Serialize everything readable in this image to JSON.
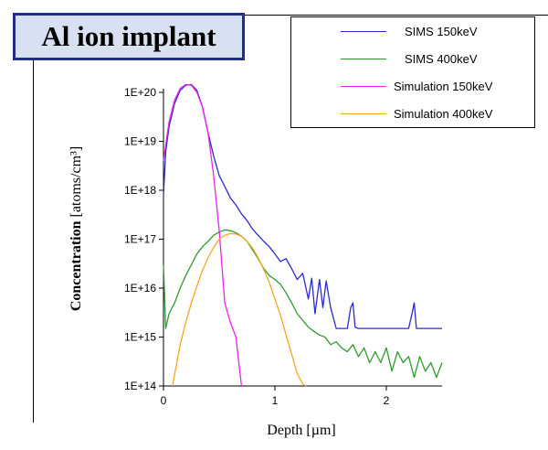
{
  "chart_data": {
    "type": "line",
    "title": "Al ion implant",
    "xlabel": "Depth [µm]",
    "ylabel_bold": "Concentration",
    "ylabel_unit": "[atoms/cm³]",
    "y_scale": "log",
    "xlim": [
      0,
      2.5
    ],
    "ylim": [
      100000000000000.0,
      1e+20
    ],
    "x_ticks": [
      {
        "value": 0,
        "label": "0"
      },
      {
        "value": 1,
        "label": "1"
      },
      {
        "value": 2,
        "label": "2"
      }
    ],
    "y_ticks": [
      {
        "value": 1e+20,
        "label": "1E+20"
      },
      {
        "value": 1e+19,
        "label": "1E+19"
      },
      {
        "value": 1e+18,
        "label": "1E+18"
      },
      {
        "value": 1e+17,
        "label": "1E+17"
      },
      {
        "value": 1e+16,
        "label": "1E+16"
      },
      {
        "value": 1000000000000000.0,
        "label": "1E+15"
      },
      {
        "value": 100000000000000.0,
        "label": "1E+14"
      }
    ],
    "grid": false,
    "legend_position": "top-right",
    "series": [
      {
        "name": "SIMS 150keV",
        "color": "#2b2bcc",
        "x": [
          0.0,
          0.02,
          0.05,
          0.1,
          0.15,
          0.2,
          0.25,
          0.3,
          0.35,
          0.4,
          0.45,
          0.5,
          0.55,
          0.6,
          0.65,
          0.7,
          0.75,
          0.8,
          0.85,
          0.9,
          0.95,
          1.0,
          1.05,
          1.1,
          1.15,
          1.2,
          1.25,
          1.3,
          1.33,
          1.36,
          1.4,
          1.43,
          1.46,
          1.5,
          1.55,
          1.6,
          1.65,
          1.68,
          1.7,
          1.72,
          1.75,
          1.8,
          1.9,
          2.0,
          2.1,
          2.2,
          2.23,
          2.25,
          2.27,
          2.3,
          2.4,
          2.5
        ],
        "y": [
          8e+17,
          6e+18,
          2e+19,
          6e+19,
          1.1e+20,
          1.4e+20,
          1.45e+20,
          1.1e+20,
          5e+19,
          1.5e+19,
          5e+18,
          2e+18,
          1.2e+18,
          7e+17,
          5e+17,
          3.3e+17,
          2.4e+17,
          1.6e+17,
          1.2e+17,
          9e+16,
          7e+16,
          5e+16,
          3.5e+16,
          4e+16,
          2.5e+16,
          1.5e+16,
          2e+16,
          6000000000000000.0,
          1.6e+16,
          3000000000000000.0,
          1.5e+16,
          4000000000000000.0,
          1.4e+16,
          4000000000000000.0,
          1500000000000000.0,
          1500000000000000.0,
          1500000000000000.0,
          4000000000000000.0,
          5000000000000000.0,
          1600000000000000.0,
          1500000000000000.0,
          1500000000000000.0,
          1500000000000000.0,
          1500000000000000.0,
          1500000000000000.0,
          1500000000000000.0,
          3000000000000000.0,
          5000000000000000.0,
          1500000000000000.0,
          1500000000000000.0,
          1500000000000000.0,
          1500000000000000.0
        ]
      },
      {
        "name": "SIMS 400keV",
        "color": "#2e9b2e",
        "x": [
          0.0,
          0.02,
          0.05,
          0.1,
          0.15,
          0.2,
          0.25,
          0.3,
          0.35,
          0.4,
          0.45,
          0.5,
          0.55,
          0.6,
          0.65,
          0.7,
          0.75,
          0.8,
          0.85,
          0.9,
          0.95,
          1.0,
          1.05,
          1.1,
          1.15,
          1.2,
          1.25,
          1.3,
          1.35,
          1.4,
          1.45,
          1.5,
          1.55,
          1.6,
          1.65,
          1.7,
          1.75,
          1.8,
          1.85,
          1.9,
          1.95,
          2.0,
          2.05,
          2.1,
          2.15,
          2.2,
          2.25,
          2.3,
          2.35,
          2.4,
          2.45,
          2.5
        ],
        "y": [
          3e+16,
          1500000000000000.0,
          3000000000000000.0,
          5000000000000000.0,
          1e+16,
          1.8e+16,
          3e+16,
          5e+16,
          7e+16,
          9e+16,
          1.2e+17,
          1.4e+17,
          1.55e+17,
          1.5e+17,
          1.35e+17,
          1.15e+17,
          9e+16,
          6e+16,
          4e+16,
          2.5e+16,
          1.8e+16,
          1.5e+16,
          1.2e+16,
          8000000000000000.0,
          5000000000000000.0,
          3000000000000000.0,
          2200000000000000.0,
          1600000000000000.0,
          1300000000000000.0,
          1100000000000000.0,
          1000000000000000.0,
          700000000000000.0,
          800000000000000.0,
          600000000000000.0,
          500000000000000.0,
          700000000000000.0,
          400000000000000.0,
          600000000000000.0,
          300000000000000.0,
          500000000000000.0,
          300000000000000.0,
          600000000000000.0,
          200000000000000.0,
          500000000000000.0,
          300000000000000.0,
          400000000000000.0,
          150000000000000.0,
          400000000000000.0,
          200000000000000.0,
          300000000000000.0,
          150000000000000.0,
          300000000000000.0
        ]
      },
      {
        "name": "Simulation 150keV",
        "color": "#ee22ee",
        "x": [
          0.0,
          0.05,
          0.1,
          0.15,
          0.2,
          0.25,
          0.3,
          0.35,
          0.4,
          0.45,
          0.5,
          0.55,
          0.6,
          0.65,
          0.7
        ],
        "y": [
          4e+18,
          2.5e+19,
          7e+19,
          1.2e+20,
          1.45e+20,
          1.4e+20,
          1e+20,
          5e+19,
          1.5e+19,
          2e+18,
          1.5e+17,
          5000000000000000.0,
          2000000000000000.0,
          1000000000000000.0,
          100000000000000.0
        ]
      },
      {
        "name": "Simulation 400keV",
        "color": "#f5a623",
        "x": [
          0.08,
          0.15,
          0.2,
          0.25,
          0.3,
          0.35,
          0.4,
          0.45,
          0.5,
          0.55,
          0.6,
          0.65,
          0.7,
          0.75,
          0.8,
          0.85,
          0.9,
          0.95,
          1.0,
          1.05,
          1.1,
          1.15,
          1.2,
          1.25,
          1.28
        ],
        "y": [
          100000000000000.0,
          700000000000000.0,
          2000000000000000.0,
          5000000000000000.0,
          1.1e+16,
          2.3e+16,
          4.2e+16,
          6.8e+16,
          1e+17,
          1.2e+17,
          1.3e+17,
          1.28e+17,
          1.15e+17,
          9e+16,
          6.5e+16,
          4.2e+16,
          2.4e+16,
          1.3e+16,
          6000000000000000.0,
          2800000000000000.0,
          1100000000000000.0,
          450000000000000.0,
          180000000000000.0,
          110000000000000.0,
          100000000000000.0
        ]
      }
    ]
  }
}
